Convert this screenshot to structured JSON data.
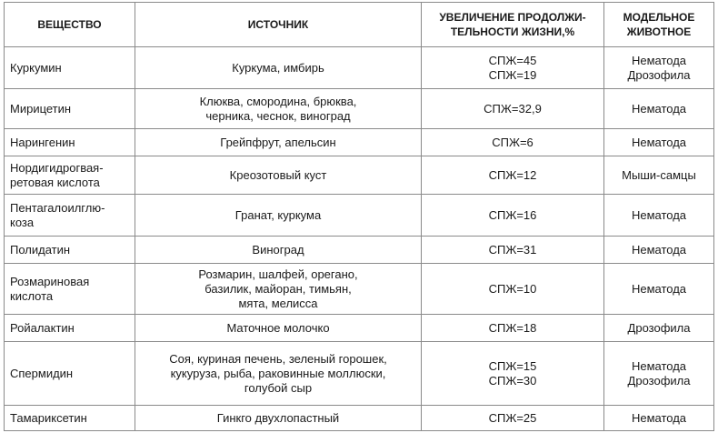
{
  "headers": [
    "ВЕЩЕСТВО",
    "ИСТОЧНИК",
    [
      "УВЕЛИЧЕНИЕ ПРОДОЛЖИ-",
      "ТЕЛЬНОСТИ ЖИЗНИ,%"
    ],
    [
      "МОДЕЛЬНОЕ",
      "ЖИВОТНОЕ"
    ]
  ],
  "rows": [
    {
      "substance": [
        "Куркумин"
      ],
      "source": [
        "Куркума, имбирь"
      ],
      "lifespan": [
        "СПЖ=45",
        "СПЖ=19"
      ],
      "animal": [
        "Нематода",
        "Дрозофила"
      ]
    },
    {
      "substance": [
        "Мирицетин"
      ],
      "source": [
        "Клюква, смородина, брюква,",
        "черника, чеснок, виноград"
      ],
      "lifespan": [
        "СПЖ=32,9"
      ],
      "animal": [
        "Нематода"
      ]
    },
    {
      "substance": [
        "Нарингенин"
      ],
      "source": [
        "Грейпфрут, апельсин"
      ],
      "lifespan": [
        "СПЖ=6"
      ],
      "animal": [
        "Нематода"
      ]
    },
    {
      "substance": [
        "Нордигидрогвая-",
        "ретовая кислота"
      ],
      "source": [
        "Креозотовый куст"
      ],
      "lifespan": [
        "СПЖ=12"
      ],
      "animal": [
        "Мыши-самцы"
      ]
    },
    {
      "substance": [
        "Пентагалоилглю-",
        "коза"
      ],
      "source": [
        "Гранат, куркума"
      ],
      "lifespan": [
        "СПЖ=16"
      ],
      "animal": [
        "Нематода"
      ]
    },
    {
      "substance": [
        "Полидатин"
      ],
      "source": [
        "Виноград"
      ],
      "lifespan": [
        "СПЖ=31"
      ],
      "animal": [
        "Нематода"
      ]
    },
    {
      "substance": [
        "Розмариновая",
        "кислота"
      ],
      "source": [
        "Розмарин, шалфей, орегано,",
        "базилик, майоран, тимьян,",
        "мята, мелисса"
      ],
      "lifespan": [
        "СПЖ=10"
      ],
      "animal": [
        "Нематода"
      ]
    },
    {
      "substance": [
        "Ройалактин"
      ],
      "source": [
        "Маточное молочко"
      ],
      "lifespan": [
        "СПЖ=18"
      ],
      "animal": [
        "Дрозофила"
      ]
    },
    {
      "substance": [
        "Спермидин"
      ],
      "source": [
        "Соя, куриная печень, зеленый горошек,",
        "кукуруза, рыба, раковинные моллюски,",
        "голубой сыр"
      ],
      "lifespan": [
        "СПЖ=15",
        "СПЖ=30"
      ],
      "animal": [
        "Нематода",
        "Дрозофила"
      ]
    },
    {
      "substance": [
        "Тамариксетин"
      ],
      "source": [
        "Гинкго двухлопастный"
      ],
      "lifespan": [
        "СПЖ=25"
      ],
      "animal": [
        "Нематода"
      ]
    }
  ]
}
